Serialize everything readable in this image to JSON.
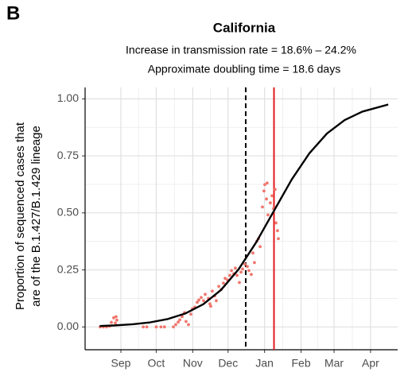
{
  "chart_data": {
    "type": "scatter",
    "panel_label": "B",
    "title": "California",
    "subtitle": [
      "Increase in transmission rate = 18.6% – 24.2%",
      "Approximate doubling time = 18.6 days"
    ],
    "ylabel": [
      "Proportion of sequenced cases that",
      "are of the B.1.427/B.1.429 lineage"
    ],
    "xlim": [
      -30.4,
      235
    ],
    "ylim": [
      -0.1,
      1.05
    ],
    "xticks": [
      {
        "value": 0,
        "label": "Sep"
      },
      {
        "value": 30,
        "label": "Oct"
      },
      {
        "value": 61,
        "label": "Nov"
      },
      {
        "value": 91,
        "label": "Dec"
      },
      {
        "value": 122,
        "label": "Jan"
      },
      {
        "value": 153,
        "label": "Feb"
      },
      {
        "value": 181,
        "label": "Mar"
      },
      {
        "value": 212,
        "label": "Apr"
      }
    ],
    "yticks": [
      {
        "value": 0,
        "label": "0.00"
      },
      {
        "value": 0.25,
        "label": "0.25"
      },
      {
        "value": 0.5,
        "label": "0.50"
      },
      {
        "value": 0.75,
        "label": "0.75"
      },
      {
        "value": 1,
        "label": "1.00"
      }
    ],
    "grid": true,
    "series": [
      {
        "type": "scatter",
        "color": "#f0766d",
        "x": [
          -17.6,
          -14.9,
          -12.2,
          -9.5,
          -8.1,
          -6.1,
          -4.1,
          -3.4,
          -4.7,
          19,
          22,
          30,
          34,
          37,
          44.6,
          46.6,
          48.6,
          50.0,
          52.0,
          54.0,
          55.3,
          57.4,
          59.4,
          60.8,
          62.8,
          64.8,
          66.2,
          68.2,
          70.2,
          71.6,
          74.3,
          75.6,
          76.3,
          77.6,
          79.7,
          81.0,
          83.1,
          85.1,
          87.1,
          88.5,
          90.5,
          92.5,
          93.9,
          95.9,
          97.2,
          98.6,
          100.6,
          102.0,
          103.3,
          105.3,
          107.4,
          108.7,
          110.7,
          112.1,
          113.4,
          115.5,
          116.8,
          118.2,
          120.2,
          121.5,
          122.2,
          123.6,
          124.9,
          126.9,
          128.3,
          129.6,
          131.0,
          131.7,
          133.0,
          133.7,
          124.2
        ],
        "values": [
          0,
          0,
          0,
          0.003,
          0.02,
          0.04,
          0.045,
          0.03,
          0.017,
          0,
          0,
          0,
          0,
          0,
          0,
          0.01,
          0.021,
          0.031,
          0.045,
          0.063,
          0.024,
          0.01,
          0.056,
          0.08,
          0.087,
          0.108,
          0.118,
          0.129,
          0.115,
          0.143,
          0.125,
          0.101,
          0.091,
          0.157,
          0.136,
          0.115,
          0.178,
          0.164,
          0.192,
          0.213,
          0.206,
          0.226,
          0.247,
          0.233,
          0.258,
          0.226,
          0.195,
          0.24,
          0.254,
          0.275,
          0.265,
          0.247,
          0.23,
          0.324,
          0.282,
          0.376,
          0.387,
          0.352,
          0.526,
          0.596,
          0.624,
          0.561,
          0.491,
          0.544,
          0.575,
          0.519,
          0.603,
          0.456,
          0.422,
          0.387,
          0.631
        ]
      },
      {
        "type": "line",
        "color": "#000000",
        "x": [
          -18,
          -5,
          10,
          25,
          40,
          55,
          70,
          85,
          100,
          115,
          129,
          145,
          160,
          175,
          190,
          205,
          227
        ],
        "values": [
          0.004,
          0.0067,
          0.0117,
          0.0202,
          0.0349,
          0.0595,
          0.0997,
          0.162,
          0.253,
          0.372,
          0.5,
          0.646,
          0.761,
          0.848,
          0.907,
          0.944,
          0.975
        ]
      }
    ],
    "vlines": [
      {
        "x": 106,
        "color": "#000000",
        "style": "dashed"
      },
      {
        "x": 130,
        "color": "#e41a1c",
        "style": "solid"
      }
    ]
  }
}
